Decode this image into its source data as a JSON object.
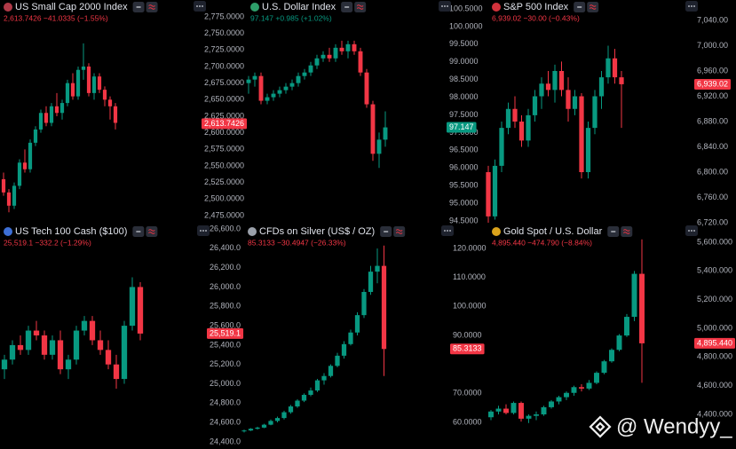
{
  "chart_data": [
    {
      "type": "candlestick",
      "title": "US Small Cap 2000 Index",
      "subtitle": "2,613.7426 −41.0335 (−1.55%)",
      "subtitle_color": "#f23645",
      "up_color": "#089981",
      "down_color": "#f23645",
      "ylim": [
        2475,
        2775
      ],
      "yticks": [
        {
          "value": 2475,
          "label": "2,475.0000"
        },
        {
          "value": 2500,
          "label": "2,500.0000"
        },
        {
          "value": 2525,
          "label": "2,525.0000"
        },
        {
          "value": 2550,
          "label": "2,550.0000"
        },
        {
          "value": 2575,
          "label": "2,575.0000"
        },
        {
          "value": 2600,
          "label": "2,600.0000"
        },
        {
          "value": 2625,
          "label": "2,625.0000"
        },
        {
          "value": 2650,
          "label": "2,650.0000"
        },
        {
          "value": 2675,
          "label": "2,675.0000"
        },
        {
          "value": 2700,
          "label": "2,700.0000"
        },
        {
          "value": 2725,
          "label": "2,725.0000"
        },
        {
          "value": 2750,
          "label": "2,750.0000"
        },
        {
          "value": 2775,
          "label": "2,775.0000"
        }
      ],
      "last_price": {
        "value": 2613.7426,
        "label": "2,613.7426"
      },
      "last_price_color": "#f23645",
      "candles": [
        [
          2530,
          2540,
          2505,
          2510
        ],
        [
          2510,
          2515,
          2480,
          2490
        ],
        [
          2490,
          2525,
          2485,
          2520
        ],
        [
          2520,
          2560,
          2515,
          2555
        ],
        [
          2555,
          2575,
          2540,
          2545
        ],
        [
          2545,
          2590,
          2540,
          2585
        ],
        [
          2585,
          2610,
          2580,
          2605
        ],
        [
          2605,
          2635,
          2600,
          2630
        ],
        [
          2630,
          2640,
          2610,
          2615
        ],
        [
          2615,
          2645,
          2610,
          2640
        ],
        [
          2640,
          2660,
          2625,
          2630
        ],
        [
          2630,
          2650,
          2620,
          2645
        ],
        [
          2645,
          2680,
          2640,
          2675
        ],
        [
          2675,
          2690,
          2650,
          2655
        ],
        [
          2655,
          2700,
          2650,
          2695
        ],
        [
          2695,
          2735,
          2680,
          2700
        ],
        [
          2700,
          2705,
          2655,
          2660
        ],
        [
          2660,
          2690,
          2650,
          2685
        ],
        [
          2685,
          2690,
          2660,
          2665
        ],
        [
          2665,
          2670,
          2640,
          2650
        ],
        [
          2650,
          2655,
          2620,
          2640
        ],
        [
          2640,
          2645,
          2605,
          2615
        ]
      ]
    },
    {
      "type": "candlestick",
      "title": "U.S. Dollar Index",
      "subtitle": "97.147 +0.985 (+1.02%)",
      "subtitle_color": "#089981",
      "up_color": "#089981",
      "down_color": "#f23645",
      "ylim": [
        94.5,
        100.5
      ],
      "yticks": [
        {
          "value": 94.5,
          "label": "94.5000"
        },
        {
          "value": 95,
          "label": "95.0000"
        },
        {
          "value": 95.5,
          "label": "95.5000"
        },
        {
          "value": 96,
          "label": "96.0000"
        },
        {
          "value": 96.5,
          "label": "96.5000"
        },
        {
          "value": 97,
          "label": "97.0000"
        },
        {
          "value": 97.5,
          "label": "97.5000"
        },
        {
          "value": 98,
          "label": "98.0000"
        },
        {
          "value": 98.5,
          "label": "98.5000"
        },
        {
          "value": 99,
          "label": "99.0000"
        },
        {
          "value": 99.5,
          "label": "99.5000"
        },
        {
          "value": 100,
          "label": "100.0000"
        },
        {
          "value": 100.5,
          "label": "100.5000"
        }
      ],
      "last_price": 97.147,
      "last_price_color": "#089981",
      "candles": [
        [
          98.4,
          98.6,
          98.1,
          98.5
        ],
        [
          98.5,
          98.7,
          98.3,
          98.6
        ],
        [
          98.6,
          98.7,
          97.8,
          97.9
        ],
        [
          97.9,
          98.1,
          97.8,
          98.0
        ],
        [
          98.0,
          98.2,
          97.9,
          98.1
        ],
        [
          98.1,
          98.3,
          98.0,
          98.2
        ],
        [
          98.2,
          98.4,
          98.1,
          98.3
        ],
        [
          98.3,
          98.5,
          98.2,
          98.4
        ],
        [
          98.4,
          98.7,
          98.3,
          98.6
        ],
        [
          98.6,
          98.8,
          98.5,
          98.7
        ],
        [
          98.7,
          99.0,
          98.6,
          98.9
        ],
        [
          98.9,
          99.2,
          98.8,
          99.1
        ],
        [
          99.1,
          99.3,
          99.0,
          99.2
        ],
        [
          99.2,
          99.4,
          99.0,
          99.1
        ],
        [
          99.1,
          99.5,
          99.0,
          99.4
        ],
        [
          99.4,
          99.6,
          99.2,
          99.3
        ],
        [
          99.3,
          99.6,
          99.1,
          99.5
        ],
        [
          99.5,
          99.6,
          99.2,
          99.3
        ],
        [
          99.3,
          99.4,
          98.6,
          98.7
        ],
        [
          98.7,
          98.8,
          97.7,
          97.8
        ],
        [
          97.8,
          97.9,
          96.2,
          96.4
        ],
        [
          96.4,
          97.0,
          96.0,
          96.8
        ],
        [
          96.8,
          97.6,
          96.6,
          97.147
        ]
      ]
    },
    {
      "type": "candlestick",
      "title": "S&P 500 Index",
      "subtitle": "6,939.02 −30.00 (−0.43%)",
      "subtitle_color": "#f23645",
      "up_color": "#089981",
      "down_color": "#f23645",
      "ylim": [
        6720,
        7040
      ],
      "yticks": [
        {
          "value": 6720,
          "label": "6,720.00"
        },
        {
          "value": 6760,
          "label": "6,760.00"
        },
        {
          "value": 6800,
          "label": "6,800.00"
        },
        {
          "value": 6840,
          "label": "6,840.00"
        },
        {
          "value": 6880,
          "label": "6,880.00"
        },
        {
          "value": 6920,
          "label": "6,920.00"
        },
        {
          "value": 6960,
          "label": "6,960.00"
        },
        {
          "value": 7000,
          "label": "7,000.00"
        },
        {
          "value": 7040,
          "label": "7,040.00"
        }
      ],
      "last_price": {
        "value": 6939.02,
        "label": "6,939.02"
      },
      "last_price_color": "#f23645",
      "candles": [
        [
          6800,
          6810,
          6720,
          6730
        ],
        [
          6730,
          6820,
          6725,
          6810
        ],
        [
          6810,
          6880,
          6800,
          6870
        ],
        [
          6870,
          6910,
          6860,
          6900
        ],
        [
          6900,
          6920,
          6870,
          6880
        ],
        [
          6880,
          6890,
          6840,
          6850
        ],
        [
          6850,
          6900,
          6840,
          6890
        ],
        [
          6890,
          6930,
          6880,
          6920
        ],
        [
          6920,
          6950,
          6900,
          6940
        ],
        [
          6940,
          6960,
          6920,
          6930
        ],
        [
          6930,
          6970,
          6910,
          6960
        ],
        [
          6960,
          6975,
          6920,
          6930
        ],
        [
          6930,
          6950,
          6880,
          6900
        ],
        [
          6900,
          6930,
          6890,
          6920
        ],
        [
          6920,
          6925,
          6790,
          6800
        ],
        [
          6800,
          6880,
          6790,
          6870
        ],
        [
          6870,
          6930,
          6860,
          6920
        ],
        [
          6920,
          6960,
          6900,
          6950
        ],
        [
          6950,
          7000,
          6940,
          6980
        ],
        [
          6980,
          6995,
          6940,
          6950
        ],
        [
          6950,
          6960,
          6870,
          6939.02
        ]
      ]
    },
    {
      "type": "candlestick",
      "title": "US Tech 100 Cash ($100)",
      "subtitle": "25,519.1 −332.2 (−1.29%)",
      "subtitle_color": "#f23645",
      "up_color": "#089981",
      "down_color": "#f23645",
      "ylim": [
        24400,
        26600
      ],
      "yticks": [
        {
          "value": 24400,
          "label": "24,400.0"
        },
        {
          "value": 24600,
          "label": "24,600.0"
        },
        {
          "value": 24800,
          "label": "24,800.0"
        },
        {
          "value": 25000,
          "label": "25,000.0"
        },
        {
          "value": 25200,
          "label": "25,200.0"
        },
        {
          "value": 25400,
          "label": "25,400.0"
        },
        {
          "value": 25600,
          "label": "25,600.0"
        },
        {
          "value": 25800,
          "label": "25,800.0"
        },
        {
          "value": 26000,
          "label": "26,000.0"
        },
        {
          "value": 26200,
          "label": "26,200.0"
        },
        {
          "value": 26400,
          "label": "26,400.0"
        },
        {
          "value": 26600,
          "label": "26,600.0"
        }
      ],
      "last_price": {
        "value": 25519.1,
        "label": "25,519.1"
      },
      "last_price_color": "#f23645",
      "candles": [
        [
          25150,
          25300,
          25050,
          25250
        ],
        [
          25250,
          25450,
          25200,
          25400
        ],
        [
          25400,
          25500,
          25300,
          25350
        ],
        [
          25350,
          25600,
          25300,
          25550
        ],
        [
          25550,
          25650,
          25450,
          25500
        ],
        [
          25500,
          25550,
          25250,
          25300
        ],
        [
          25300,
          25500,
          25250,
          25450
        ],
        [
          25450,
          25550,
          25100,
          25150
        ],
        [
          25150,
          25300,
          25050,
          25250
        ],
        [
          25250,
          25600,
          25200,
          25550
        ],
        [
          25550,
          25700,
          25500,
          25650
        ],
        [
          25650,
          25700,
          25400,
          25450
        ],
        [
          25450,
          25550,
          25300,
          25350
        ],
        [
          25350,
          25450,
          25150,
          25200
        ],
        [
          25200,
          25300,
          24950,
          25050
        ],
        [
          25050,
          25650,
          25000,
          25600
        ],
        [
          25600,
          26100,
          25550,
          26000
        ],
        [
          26000,
          26050,
          25450,
          25519.1
        ]
      ]
    },
    {
      "type": "candlestick",
      "title": "CFDs on Silver (US$ / OZ)",
      "subtitle": "85.3133 −30.4947 (−26.33%)",
      "subtitle_color": "#f23645",
      "up_color": "#089981",
      "down_color": "#f23645",
      "ylim": [
        60,
        120
      ],
      "yticks": [
        {
          "value": 60,
          "label": "60.0000"
        },
        {
          "value": 70,
          "label": "70.0000"
        },
        {
          "value": 90,
          "label": "90.0000"
        },
        {
          "value": 100,
          "label": "100.0000"
        },
        {
          "value": 110,
          "label": "110.0000"
        },
        {
          "value": 120,
          "label": "120.0000"
        }
      ],
      "last_price": 85.3133,
      "last_price_color": "#f23645",
      "candles": [
        [
          57,
          57.5,
          56.5,
          57.2
        ],
        [
          57.2,
          58,
          57,
          57.8
        ],
        [
          57.8,
          58.5,
          57.5,
          58.2
        ],
        [
          58.2,
          59.5,
          58,
          59.2
        ],
        [
          59.2,
          61,
          59,
          60.5
        ],
        [
          60.5,
          62,
          60,
          61.5
        ],
        [
          61.5,
          64,
          61,
          63.5
        ],
        [
          63.5,
          66,
          63,
          65.5
        ],
        [
          65.5,
          68,
          65,
          67.5
        ],
        [
          67.5,
          70,
          67,
          69.5
        ],
        [
          69.5,
          72,
          69,
          71
        ],
        [
          71,
          75,
          70.5,
          74.5
        ],
        [
          74.5,
          77,
          73,
          76
        ],
        [
          76,
          80,
          75.5,
          79.5
        ],
        [
          79.5,
          84,
          79,
          83
        ],
        [
          83,
          88,
          82,
          87
        ],
        [
          87,
          92,
          86.5,
          91
        ],
        [
          91,
          98,
          90,
          97
        ],
        [
          97,
          106,
          96,
          105
        ],
        [
          105,
          114,
          104,
          112
        ],
        [
          112,
          120,
          108,
          114
        ],
        [
          114,
          121,
          76,
          85.3133
        ]
      ]
    },
    {
      "type": "candlestick",
      "title": "Gold Spot / U.S. Dollar",
      "subtitle": "4,895.440 −474.790 (−8.84%)",
      "subtitle_color": "#f23645",
      "up_color": "#089981",
      "down_color": "#f23645",
      "ylim": [
        4400,
        5600
      ],
      "yticks": [
        {
          "value": 4400,
          "label": "4,400.000"
        },
        {
          "value": 4600,
          "label": "4,600.000"
        },
        {
          "value": 4800,
          "label": "4,800.000"
        },
        {
          "value": 5000,
          "label": "5,000.000"
        },
        {
          "value": 5200,
          "label": "5,200.000"
        },
        {
          "value": 5400,
          "label": "5,400.000"
        },
        {
          "value": 5600,
          "label": "5,600.000"
        }
      ],
      "last_price": {
        "value": 4895.44,
        "label": "4,895.440"
      },
      "last_price_color": "#f23645",
      "candles": [
        [
          4380,
          4430,
          4360,
          4420
        ],
        [
          4420,
          4460,
          4400,
          4440
        ],
        [
          4440,
          4470,
          4400,
          4410
        ],
        [
          4410,
          4490,
          4400,
          4480
        ],
        [
          4480,
          4490,
          4350,
          4370
        ],
        [
          4370,
          4400,
          4340,
          4390
        ],
        [
          4390,
          4420,
          4360,
          4400
        ],
        [
          4400,
          4460,
          4390,
          4450
        ],
        [
          4450,
          4500,
          4440,
          4490
        ],
        [
          4490,
          4530,
          4470,
          4520
        ],
        [
          4520,
          4560,
          4500,
          4550
        ],
        [
          4550,
          4600,
          4530,
          4590
        ],
        [
          4590,
          4610,
          4560,
          4580
        ],
        [
          4580,
          4640,
          4570,
          4620
        ],
        [
          4620,
          4700,
          4610,
          4690
        ],
        [
          4690,
          4780,
          4680,
          4770
        ],
        [
          4770,
          4860,
          4760,
          4850
        ],
        [
          4850,
          4960,
          4840,
          4950
        ],
        [
          4950,
          5100,
          4940,
          5080
        ],
        [
          5080,
          5400,
          5050,
          5380
        ],
        [
          5380,
          5620,
          4620,
          4895.44
        ]
      ]
    }
  ],
  "watermark": "@ Wendyy_"
}
